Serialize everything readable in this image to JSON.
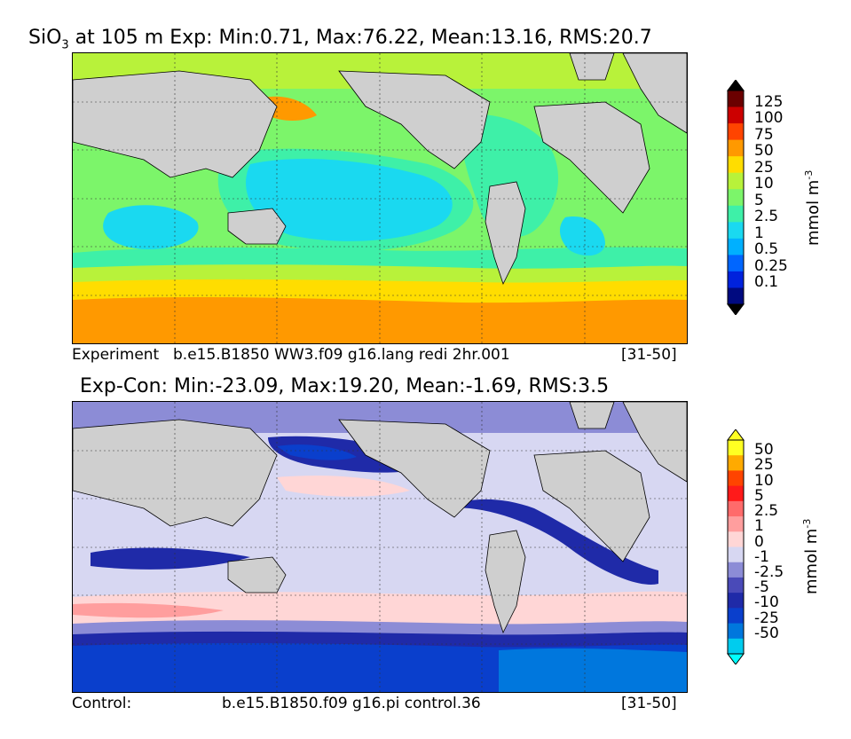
{
  "panels": [
    {
      "title_prefix": "SiO",
      "title_sub": "3",
      "title_rest": " at 105 m Exp: Min:0.71, Max:76.22, Mean:13.16, RMS:20.7",
      "caption_left": "Experiment",
      "caption_center": "b.e15.B1850 WW3.f09 g16.lang redi 2hr.001",
      "caption_right": "[31-50]"
    },
    {
      "title": "Exp-Con: Min:-23.09, Max:19.20, Mean:-1.69, RMS:3.5",
      "caption_left": "Control:",
      "caption_center": "b.e15.B1850.f09 g16.pi control.36",
      "caption_right": "[31-50]"
    }
  ],
  "chart_data": [
    {
      "type": "heatmap",
      "variable": "SiO3",
      "depth": "105 m",
      "stats": {
        "min": 0.71,
        "max": 76.22,
        "mean": 13.16,
        "rms": 20.7
      },
      "colorbar": {
        "unit": "mmol m",
        "unit_exp": "-3",
        "levels": [
          "125",
          "100",
          "75",
          "50",
          "25",
          "10",
          "5",
          "2.5",
          "1",
          "0.5",
          "0.25",
          "0.1"
        ],
        "colors": [
          "#6b0000",
          "#cc0000",
          "#ff4400",
          "#ff9900",
          "#ffdd00",
          "#b8f23a",
          "#7cf56a",
          "#3ef0a8",
          "#1ad9f0",
          "#00b0ff",
          "#0066ff",
          "#0022dd",
          "#000a80"
        ],
        "extend": "both"
      }
    },
    {
      "type": "heatmap",
      "variable": "Exp-Con",
      "stats": {
        "min": -23.09,
        "max": 19.2,
        "mean": -1.69,
        "rms": 3.5
      },
      "colorbar": {
        "unit": "mmol m",
        "unit_exp": "-3",
        "levels": [
          "50",
          "25",
          "10",
          "5",
          "2.5",
          "1",
          "0",
          "-1",
          "-2.5",
          "-5",
          "-10",
          "-25",
          "-50"
        ],
        "colors": [
          "#ffff22",
          "#ffaa00",
          "#ff4400",
          "#ff1a1a",
          "#ff6b6b",
          "#ff9e9e",
          "#ffd6d6",
          "#d7d7f2",
          "#8c8cd6",
          "#4a4ab8",
          "#1f2aa8",
          "#0a3fcc",
          "#0077dd",
          "#00ccee"
        ],
        "extend": "both",
        "top_tri": "#ffff22",
        "bottom_tri": "#00ffff"
      }
    }
  ]
}
